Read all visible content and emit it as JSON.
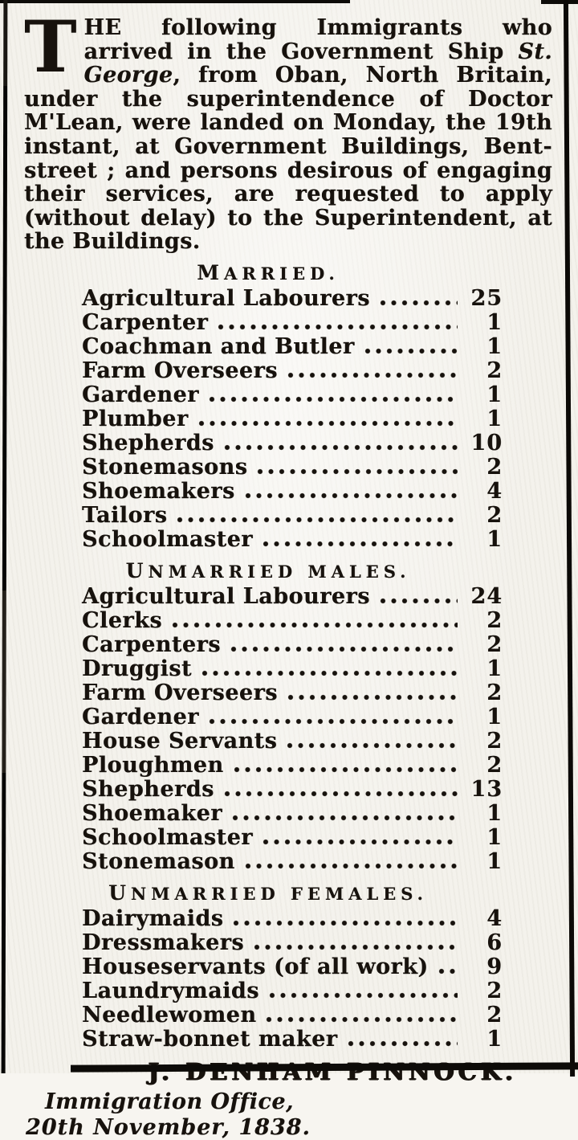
{
  "intro": {
    "drop_cap": "T",
    "part1": "HE following Immigrants who arrived in the Government Ship ",
    "ship_name": "St. George",
    "part2": ", from Oban, North Britain, under the superintendence of Doctor M'Lean, were landed on Monday, the 19th instant, at Government Buildings, Bent-street ; and persons desirous of engaging their services, are requested to apply (without delay) to the Superintendent, at the Buildings."
  },
  "sections": [
    {
      "heading": "MARRIED.",
      "rows": [
        {
          "label": "Agricultural Labourers",
          "count": "25"
        },
        {
          "label": "Carpenter",
          "count": "1"
        },
        {
          "label": "Coachman and Butler",
          "count": "1"
        },
        {
          "label": "Farm Overseers",
          "count": "2"
        },
        {
          "label": "Gardener",
          "count": "1"
        },
        {
          "label": "Plumber",
          "count": "1"
        },
        {
          "label": "Shepherds",
          "count": "10"
        },
        {
          "label": "Stonemasons",
          "count": "2"
        },
        {
          "label": "Shoemakers",
          "count": "4"
        },
        {
          "label": "Tailors",
          "count": "2"
        },
        {
          "label": "Schoolmaster",
          "count": "1"
        }
      ]
    },
    {
      "heading": "UNMARRIED MALES.",
      "rows": [
        {
          "label": "Agricultural Labourers",
          "count": "24"
        },
        {
          "label": "Clerks",
          "count": "2"
        },
        {
          "label": "Carpenters",
          "count": "2"
        },
        {
          "label": "Druggist",
          "count": "1"
        },
        {
          "label": "Farm Overseers",
          "count": "2"
        },
        {
          "label": "Gardener",
          "count": "1"
        },
        {
          "label": "House Servants",
          "count": "2"
        },
        {
          "label": "Ploughmen",
          "count": "2"
        },
        {
          "label": "Shepherds",
          "count": "13"
        },
        {
          "label": "Shoemaker",
          "count": "1"
        },
        {
          "label": "Schoolmaster",
          "count": "1"
        },
        {
          "label": "Stonemason",
          "count": "1"
        }
      ]
    },
    {
      "heading": "UNMARRIED FEMALES.",
      "rows": [
        {
          "label": "Dairymaids",
          "count": "4"
        },
        {
          "label": "Dressmakers",
          "count": "6"
        },
        {
          "label": "Houseservants (of all work)",
          "count": "9"
        },
        {
          "label": "Laundrymaids",
          "count": "2"
        },
        {
          "label": "Needlewomen",
          "count": "2"
        },
        {
          "label": "Straw-bonnet maker",
          "count": "1"
        }
      ]
    }
  ],
  "signature": "J. DENHAM PINNOCK.",
  "office_line": "Immigration Office,",
  "date_line": "20th November, 1838."
}
